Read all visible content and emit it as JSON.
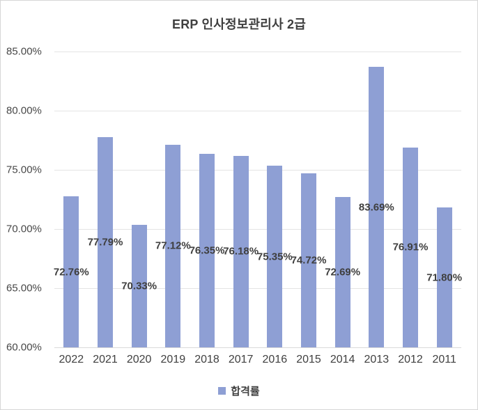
{
  "chart_data": {
    "type": "bar",
    "title": "ERP 인사정보관리사 2급",
    "categories": [
      "2022",
      "2021",
      "2020",
      "2019",
      "2018",
      "2017",
      "2016",
      "2015",
      "2014",
      "2013",
      "2012",
      "2011"
    ],
    "series": [
      {
        "name": "합격률",
        "values": [
          72.76,
          77.79,
          70.33,
          77.12,
          76.35,
          76.18,
          75.35,
          74.72,
          72.69,
          83.69,
          76.91,
          71.8
        ],
        "value_labels": [
          "72.76%",
          "77.79%",
          "70.33%",
          "77.12%",
          "76.35%",
          "76.18%",
          "75.35%",
          "74.72%",
          "72.69%",
          "83.69%",
          "76.91%",
          "71.80%"
        ]
      }
    ],
    "xlabel": "",
    "ylabel": "",
    "ylim": [
      60,
      85
    ],
    "ytick_step": 5,
    "ytick_labels": [
      "60.00%",
      "65.00%",
      "70.00%",
      "75.00%",
      "80.00%",
      "85.00%"
    ],
    "grid": true,
    "data_label_position": "center",
    "legend_position": "bottom"
  },
  "legend": {
    "pass_rate_label": "합격률"
  },
  "colors": {
    "bar": "#8e9fd4",
    "gridline": "#e4e4e4",
    "text": "#3f3f3f",
    "frame_border": "#d6d6d6"
  }
}
